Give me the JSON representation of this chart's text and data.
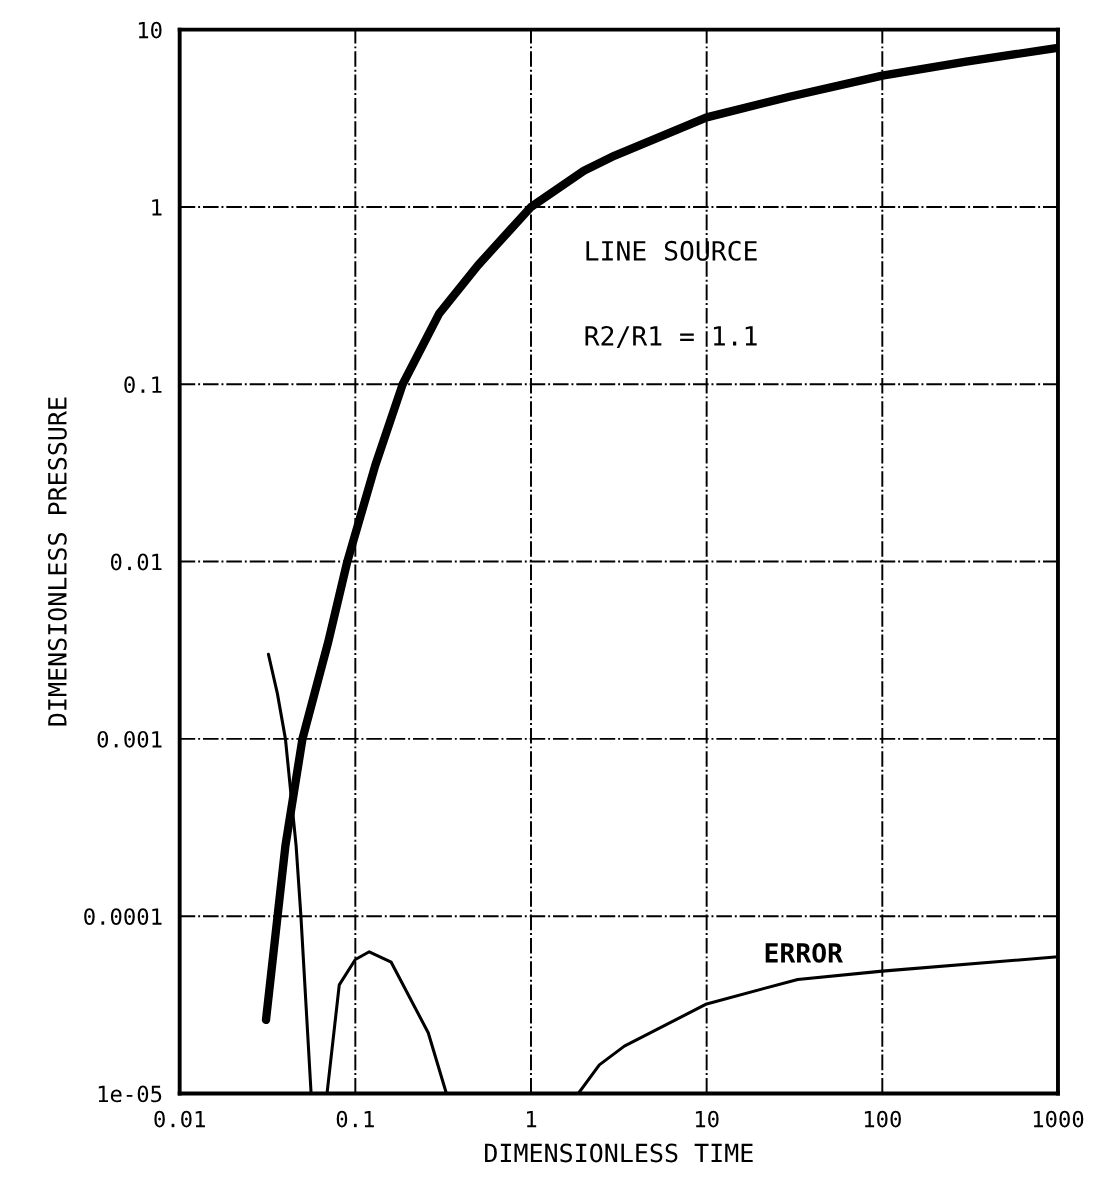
{
  "chart_data": {
    "type": "line",
    "xlabel": "DIMENSIONLESS TIME",
    "ylabel": "DIMENSIONLESS PRESSURE",
    "log": "xy",
    "grid": true,
    "marker": "none",
    "line_style": "solid",
    "xlim": [
      0.01,
      1000
    ],
    "xticks": [
      0.01,
      0.1,
      1,
      10,
      100,
      1000
    ],
    "ylim": [
      1e-05,
      10
    ],
    "yticks": [
      1e-05,
      0.0001,
      0.001,
      0.01,
      0.1,
      1,
      10
    ],
    "annotations": [
      "LINE SOURCE",
      "R2/R1 = 1.1",
      "ERROR"
    ],
    "series": [
      {
        "color": "#000000",
        "x": [
          0.031,
          0.04,
          0.05,
          0.07,
          0.09,
          0.13,
          0.186,
          0.3,
          0.5,
          1.0,
          2,
          3,
          10,
          30,
          100,
          300,
          1000
        ],
        "values": [
          2.6e-05,
          0.00025,
          0.001,
          0.0035,
          0.01,
          0.035,
          0.1,
          0.25,
          0.47,
          1.0,
          1.6,
          1.95,
          3.2,
          4.2,
          5.5,
          6.6,
          7.9
        ]
      },
      {
        "color": "#000000",
        "x": [
          0.032,
          0.036,
          0.04,
          0.046,
          0.049,
          0.056
        ],
        "values": [
          0.003,
          0.0018,
          0.001,
          0.00025,
          0.0001,
          1e-05
        ]
      },
      {
        "color": "#000000",
        "x": [
          0.069,
          0.081,
          0.1,
          0.12,
          0.16,
          0.26,
          0.33
        ],
        "values": [
          1e-05,
          4.1e-05,
          5.7e-05,
          6.3e-05,
          5.5e-05,
          2.2e-05,
          1e-05
        ]
      },
      {
        "color": "#000000",
        "x": [
          1.86,
          2.45,
          3.4,
          10,
          33,
          100,
          1000
        ],
        "values": [
          1e-05,
          1.45e-05,
          1.85e-05,
          3.2e-05,
          4.4e-05,
          4.9e-05,
          5.9e-05
        ]
      }
    ]
  }
}
